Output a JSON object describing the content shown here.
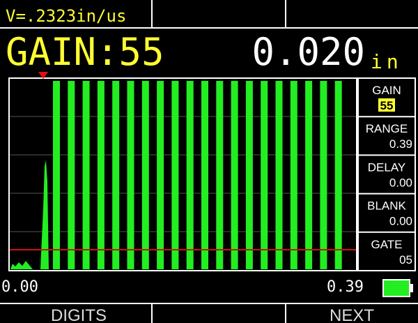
{
  "header": {
    "velocity": "V=.2323in/us",
    "gain": "GAIN:55",
    "reading": "0.020",
    "unit": "in"
  },
  "sidebar": [
    {
      "label": "GAIN",
      "value": "55"
    },
    {
      "label": "RANGE",
      "value": "0.39"
    },
    {
      "label": "DELAY",
      "value": "0.00"
    },
    {
      "label": "BLANK",
      "value": "0.00"
    },
    {
      "label": "GATE",
      "value": "05"
    }
  ],
  "axis": {
    "start": "0.00",
    "end": "0.39"
  },
  "softkeys": [
    "DIGITS",
    "NEXT"
  ]
}
